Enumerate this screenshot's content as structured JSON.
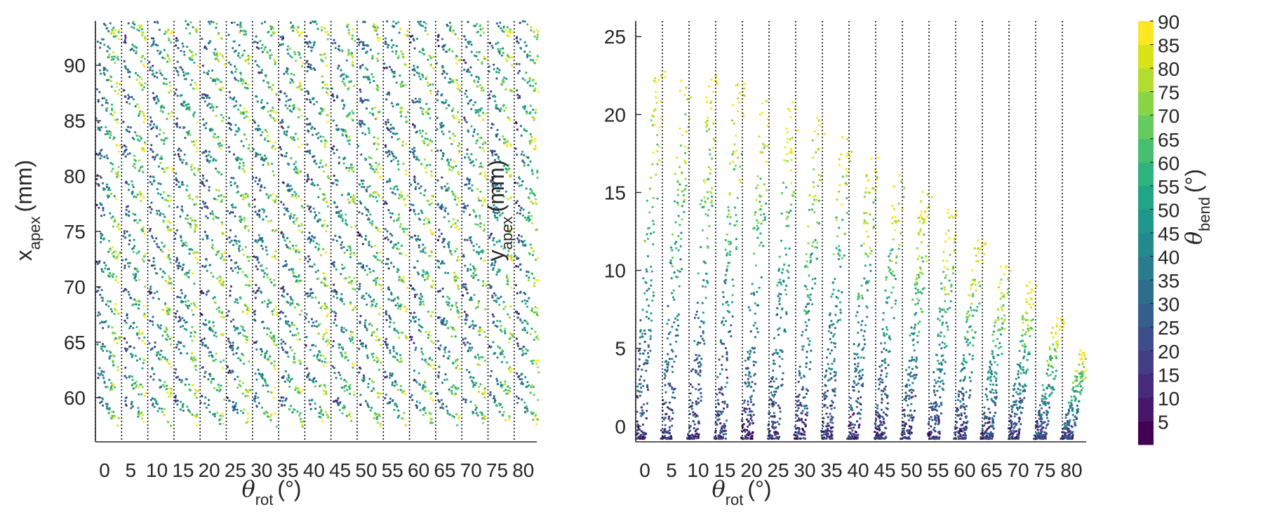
{
  "chart_data": [
    {
      "type": "scatter",
      "xlabel": {
        "symbol": "θ",
        "sub": "rot",
        "unit": "(°)"
      },
      "ylabel": {
        "main": "x",
        "sub": "apex",
        "unit": "(mm)"
      },
      "xtick_labels": [
        "0",
        "5",
        "10",
        "15",
        "20",
        "25",
        "30",
        "35",
        "40",
        "45",
        "50",
        "55",
        "60",
        "65",
        "70",
        "75",
        "80"
      ],
      "ytick_labels": [
        "60",
        "65",
        "70",
        "75",
        "80",
        "85",
        "90"
      ],
      "ylim": [
        56,
        94
      ],
      "y_ticks": [
        60,
        65,
        70,
        75,
        80,
        85,
        90
      ],
      "x_groups": [
        0,
        5,
        10,
        15,
        20,
        25,
        30,
        35,
        40,
        45,
        50,
        55,
        60,
        65,
        70,
        75,
        80
      ],
      "row_levels": [
        58.8,
        61.2,
        63.8,
        66.2,
        68.6,
        71.2,
        73.6,
        76.2,
        78.6,
        81.2,
        83.6,
        86.2,
        88.8,
        91.2,
        93.6
      ],
      "color_encoding": "theta_bend (0-90 deg)",
      "grid": "vertical dotted lines at each theta_rot group",
      "point_color_scale": "viridis"
    },
    {
      "type": "scatter",
      "xlabel": {
        "symbol": "θ",
        "sub": "rot",
        "unit": "(°)"
      },
      "ylabel": {
        "main": "y",
        "sub": "apex",
        "unit": "(mm)"
      },
      "xtick_labels": [
        "0",
        "5",
        "10",
        "15",
        "20",
        "25",
        "30",
        "35",
        "40",
        "45",
        "50",
        "55",
        "60",
        "65",
        "70",
        "75",
        "80"
      ],
      "ytick_labels": [
        "0",
        "5",
        "10",
        "15",
        "20",
        "25"
      ],
      "ylim": [
        -1,
        26
      ],
      "y_ticks": [
        0,
        5,
        10,
        15,
        20,
        25
      ],
      "x_groups": [
        0,
        5,
        10,
        15,
        20,
        25,
        30,
        35,
        40,
        45,
        50,
        55,
        60,
        65,
        70,
        75,
        80
      ],
      "max_y_per_group": [
        23.0,
        23.0,
        22.5,
        22.0,
        21.5,
        20.8,
        19.8,
        18.8,
        17.6,
        16.5,
        15.2,
        14.0,
        12.0,
        10.5,
        9.5,
        7.0,
        5.0
      ],
      "color_encoding": "theta_bend (0-90 deg)",
      "grid": "vertical dotted lines at each theta_rot group",
      "point_color_scale": "viridis"
    }
  ],
  "colorbar": {
    "label": {
      "symbol": "θ",
      "sub": "bend",
      "unit": "(°)"
    },
    "range": [
      0,
      90
    ],
    "tick_labels": [
      "5",
      "10",
      "15",
      "20",
      "25",
      "30",
      "35",
      "40",
      "45",
      "50",
      "55",
      "60",
      "65",
      "70",
      "75",
      "80",
      "85",
      "90"
    ],
    "levels": 18,
    "colors": [
      "#440154",
      "#481769",
      "#472a7a",
      "#433d84",
      "#3d4e8a",
      "#355e8d",
      "#2e6d8e",
      "#297b8e",
      "#23898e",
      "#1f978b",
      "#21a585",
      "#2eb37c",
      "#46c06f",
      "#65cb5e",
      "#89d548",
      "#b0dd2f",
      "#d8e219",
      "#fde725"
    ]
  }
}
